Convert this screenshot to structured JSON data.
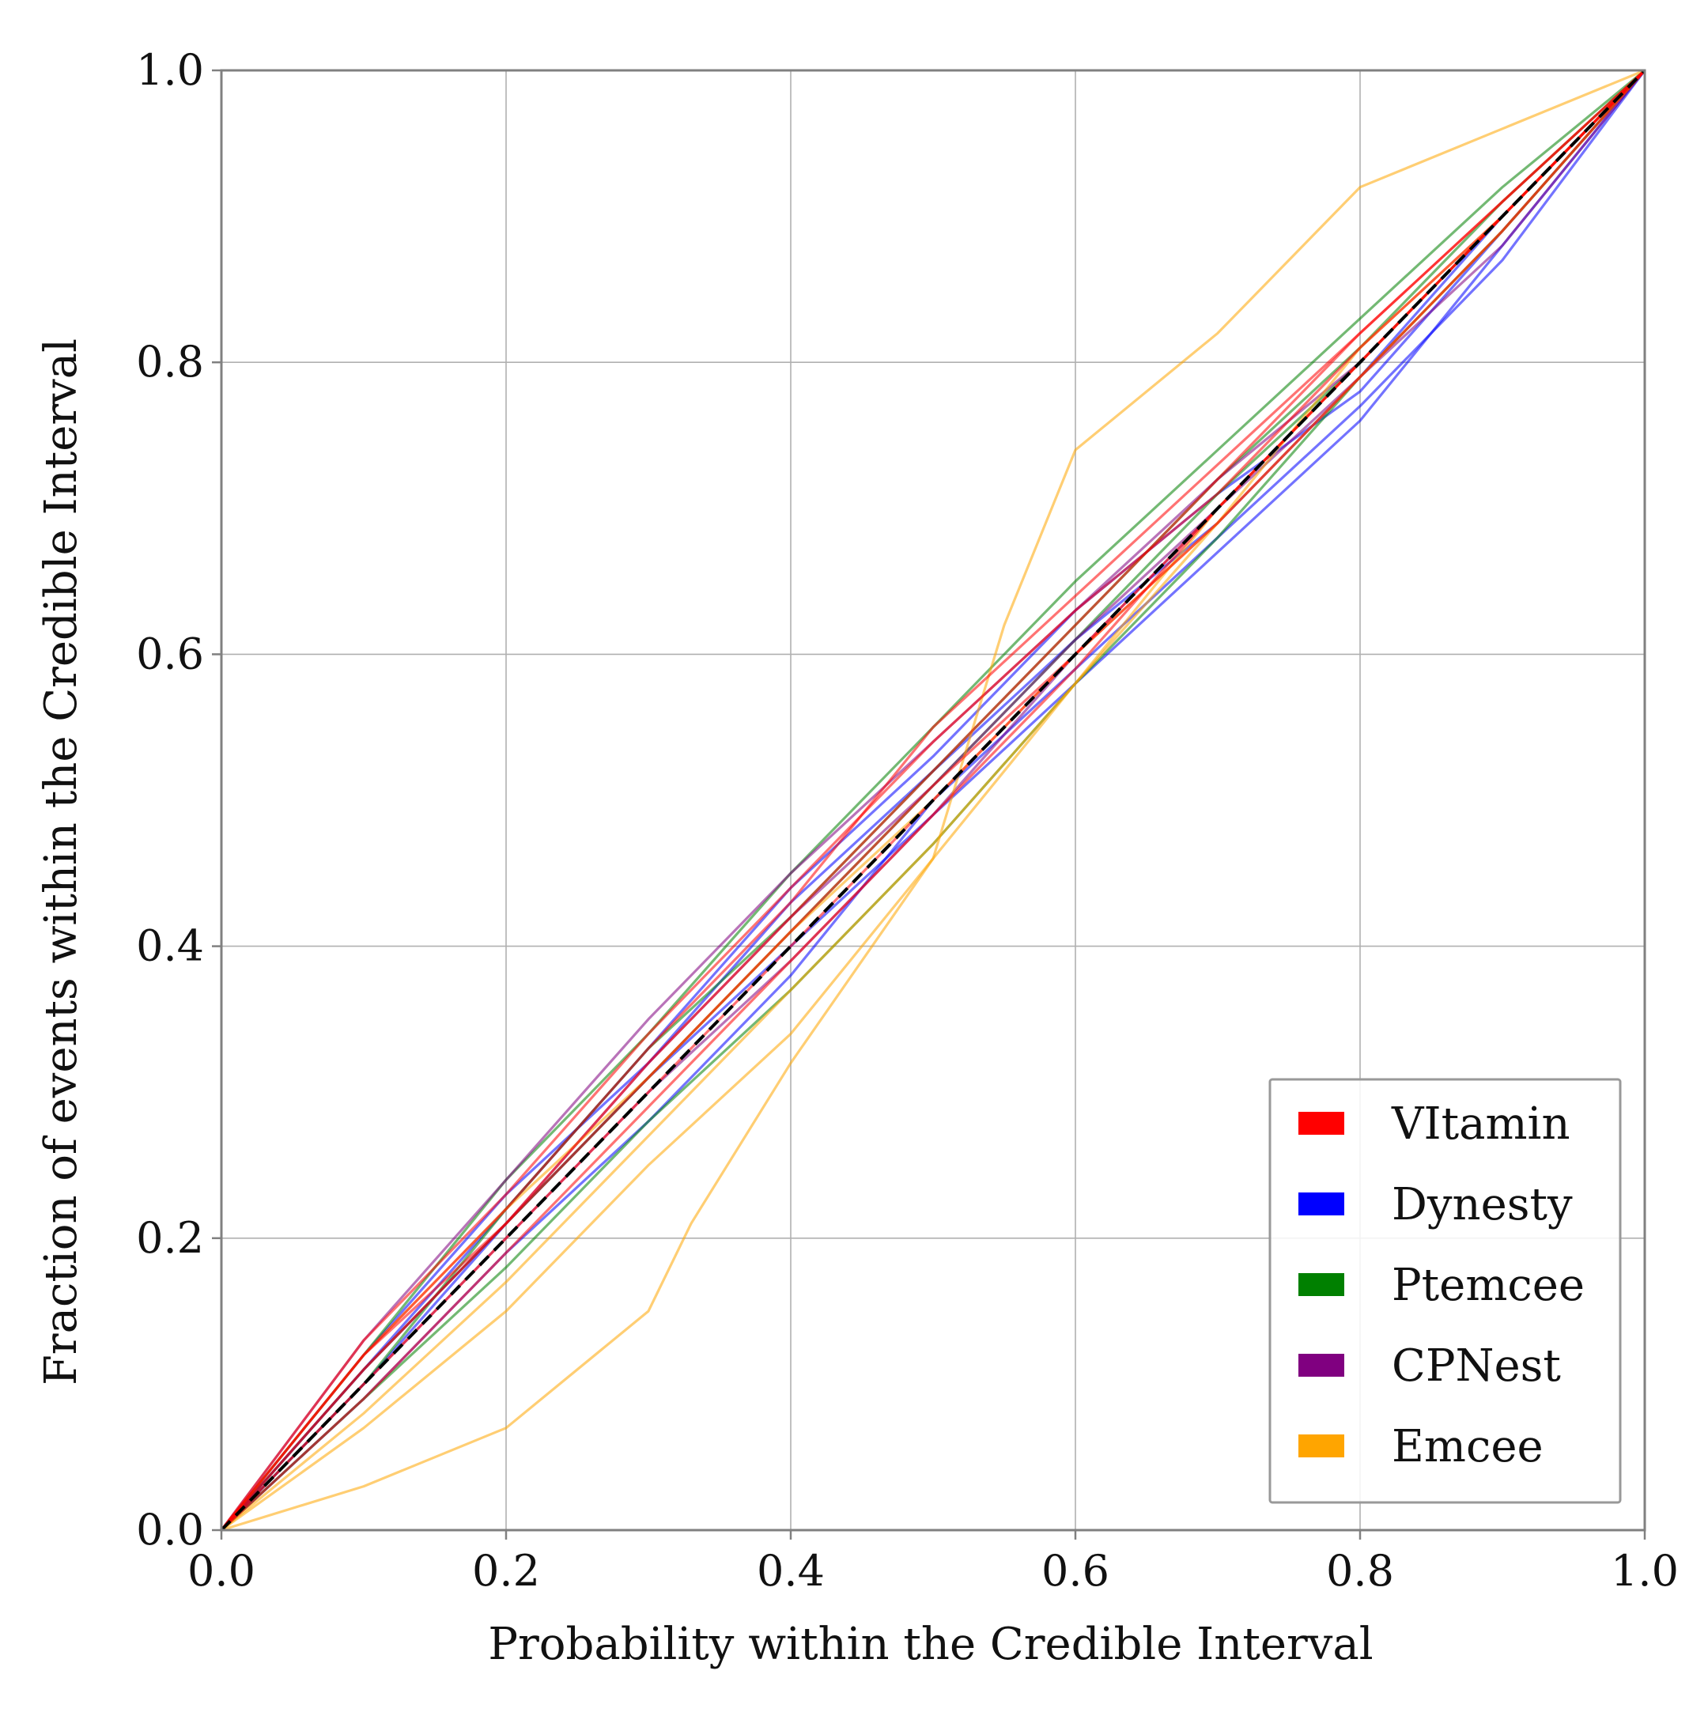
{
  "chart_data": {
    "type": "line",
    "title": "",
    "xlabel": "Probability within the Credible Interval",
    "ylabel": "Fraction of events within the Credible Interval",
    "xlim": [
      0.0,
      1.0
    ],
    "ylim": [
      0.0,
      1.0
    ],
    "xticks": [
      "0.0",
      "0.2",
      "0.4",
      "0.6",
      "0.8",
      "1.0"
    ],
    "yticks": [
      "0.0",
      "0.2",
      "0.4",
      "0.6",
      "0.8",
      "1.0"
    ],
    "grid": true,
    "legend_position": "lower-right",
    "reference_line": {
      "x": [
        0.0,
        1.0
      ],
      "y": [
        0.0,
        1.0
      ],
      "style": "dashed",
      "color": "#000000"
    },
    "legend": [
      {
        "name": "VItamin",
        "color": "#ff0000"
      },
      {
        "name": "Dynesty",
        "color": "#0000ff"
      },
      {
        "name": "Ptemcee",
        "color": "#008000"
      },
      {
        "name": "CPNest",
        "color": "#800080"
      },
      {
        "name": "Emcee",
        "color": "#ffa500"
      }
    ],
    "series": [
      {
        "name": "Dynesty",
        "color": "#0000ff",
        "x": [
          0,
          0.1,
          0.2,
          0.3,
          0.4,
          0.5,
          0.6,
          0.7,
          0.8,
          0.9,
          1
        ],
        "y": [
          0,
          0.11,
          0.22,
          0.33,
          0.44,
          0.53,
          0.63,
          0.71,
          0.78,
          0.89,
          1
        ]
      },
      {
        "name": "Dynesty",
        "color": "#0000ff",
        "x": [
          0,
          0.1,
          0.2,
          0.3,
          0.4,
          0.5,
          0.6,
          0.7,
          0.8,
          0.9,
          1
        ],
        "y": [
          0,
          0.09,
          0.19,
          0.28,
          0.38,
          0.5,
          0.59,
          0.68,
          0.77,
          0.87,
          1
        ]
      },
      {
        "name": "Dynesty",
        "color": "#0000ff",
        "x": [
          0,
          0.1,
          0.2,
          0.3,
          0.4,
          0.5,
          0.6,
          0.7,
          0.8,
          0.9,
          1
        ],
        "y": [
          0,
          0.12,
          0.23,
          0.32,
          0.43,
          0.52,
          0.61,
          0.69,
          0.79,
          0.9,
          1
        ]
      },
      {
        "name": "Dynesty",
        "color": "#0000ff",
        "x": [
          0,
          0.1,
          0.2,
          0.3,
          0.4,
          0.5,
          0.6,
          0.7,
          0.8,
          0.9,
          1
        ],
        "y": [
          0,
          0.1,
          0.21,
          0.31,
          0.4,
          0.49,
          0.58,
          0.67,
          0.76,
          0.88,
          1
        ]
      },
      {
        "name": "Ptemcee",
        "color": "#008000",
        "x": [
          0,
          0.1,
          0.2,
          0.3,
          0.4,
          0.5,
          0.6,
          0.7,
          0.8,
          0.9,
          1
        ],
        "y": [
          0,
          0.12,
          0.24,
          0.34,
          0.45,
          0.55,
          0.65,
          0.74,
          0.83,
          0.92,
          1
        ]
      },
      {
        "name": "Ptemcee",
        "color": "#008000",
        "x": [
          0,
          0.1,
          0.2,
          0.3,
          0.4,
          0.5,
          0.6,
          0.7,
          0.8,
          0.9,
          1
        ],
        "y": [
          0,
          0.09,
          0.18,
          0.28,
          0.37,
          0.47,
          0.58,
          0.68,
          0.79,
          0.89,
          1
        ]
      },
      {
        "name": "Ptemcee",
        "color": "#008000",
        "x": [
          0,
          0.1,
          0.2,
          0.3,
          0.4,
          0.5,
          0.6,
          0.7,
          0.8,
          0.9,
          1
        ],
        "y": [
          0,
          0.11,
          0.21,
          0.31,
          0.41,
          0.51,
          0.61,
          0.71,
          0.8,
          0.9,
          1
        ]
      },
      {
        "name": "Ptemcee",
        "color": "#008000",
        "x": [
          0,
          0.1,
          0.2,
          0.3,
          0.4,
          0.5,
          0.6,
          0.7,
          0.8,
          0.9,
          1
        ],
        "y": [
          0,
          0.1,
          0.22,
          0.33,
          0.42,
          0.52,
          0.62,
          0.72,
          0.81,
          0.91,
          1
        ]
      },
      {
        "name": "CPNest",
        "color": "#800080",
        "x": [
          0,
          0.1,
          0.2,
          0.3,
          0.4,
          0.5,
          0.6,
          0.7,
          0.8,
          0.9,
          1
        ],
        "y": [
          0,
          0.13,
          0.24,
          0.35,
          0.45,
          0.54,
          0.63,
          0.72,
          0.8,
          0.9,
          1
        ]
      },
      {
        "name": "CPNest",
        "color": "#800080",
        "x": [
          0,
          0.1,
          0.2,
          0.3,
          0.4,
          0.5,
          0.6,
          0.7,
          0.8,
          0.9,
          1
        ],
        "y": [
          0,
          0.1,
          0.2,
          0.3,
          0.39,
          0.49,
          0.6,
          0.7,
          0.79,
          0.88,
          1
        ]
      },
      {
        "name": "CPNest",
        "color": "#800080",
        "x": [
          0,
          0.1,
          0.2,
          0.3,
          0.4,
          0.5,
          0.6,
          0.7,
          0.8,
          0.9,
          1
        ],
        "y": [
          0,
          0.11,
          0.21,
          0.32,
          0.42,
          0.51,
          0.61,
          0.7,
          0.8,
          0.9,
          1
        ]
      },
      {
        "name": "Emcee",
        "color": "#ffa500",
        "x": [
          0,
          0.1,
          0.2,
          0.3,
          0.33,
          0.4,
          0.5,
          0.55,
          0.6,
          0.7,
          0.8,
          0.9,
          1
        ],
        "y": [
          0,
          0.03,
          0.07,
          0.15,
          0.21,
          0.32,
          0.46,
          0.62,
          0.74,
          0.82,
          0.92,
          0.96,
          1
        ]
      },
      {
        "name": "Emcee",
        "color": "#ffa500",
        "x": [
          0,
          0.1,
          0.2,
          0.3,
          0.4,
          0.5,
          0.6,
          0.7,
          0.8,
          0.9,
          1
        ],
        "y": [
          0,
          0.07,
          0.15,
          0.25,
          0.34,
          0.46,
          0.58,
          0.7,
          0.8,
          0.9,
          1
        ]
      },
      {
        "name": "Emcee",
        "color": "#ffa500",
        "x": [
          0,
          0.1,
          0.2,
          0.3,
          0.4,
          0.5,
          0.6,
          0.7,
          0.8,
          0.9,
          1
        ],
        "y": [
          0,
          0.12,
          0.22,
          0.31,
          0.41,
          0.5,
          0.6,
          0.69,
          0.79,
          0.89,
          1
        ]
      },
      {
        "name": "Emcee",
        "color": "#ffa500",
        "x": [
          0,
          0.1,
          0.2,
          0.3,
          0.4,
          0.5,
          0.6,
          0.7,
          0.8,
          0.9,
          1
        ],
        "y": [
          0,
          0.08,
          0.17,
          0.27,
          0.37,
          0.47,
          0.58,
          0.69,
          0.81,
          0.9,
          1
        ]
      },
      {
        "name": "VItamin",
        "color": "#ff0000",
        "x": [
          0,
          0.1,
          0.2,
          0.3,
          0.4,
          0.5,
          0.6,
          0.7,
          0.8,
          0.9,
          1
        ],
        "y": [
          0,
          0.12,
          0.22,
          0.33,
          0.43,
          0.55,
          0.64,
          0.73,
          0.82,
          0.91,
          1
        ]
      },
      {
        "name": "VItamin",
        "color": "#ff0000",
        "x": [
          0,
          0.1,
          0.2,
          0.3,
          0.4,
          0.5,
          0.6,
          0.7,
          0.8,
          0.9,
          1
        ],
        "y": [
          0,
          0.1,
          0.2,
          0.3,
          0.4,
          0.5,
          0.6,
          0.7,
          0.8,
          0.9,
          1
        ]
      },
      {
        "name": "VItamin",
        "color": "#ff0000",
        "x": [
          0,
          0.1,
          0.2,
          0.3,
          0.4,
          0.5,
          0.6,
          0.7,
          0.8,
          0.9,
          1
        ],
        "y": [
          0,
          0.11,
          0.21,
          0.31,
          0.41,
          0.51,
          0.6,
          0.69,
          0.79,
          0.89,
          1
        ]
      },
      {
        "name": "VItamin",
        "color": "#ff0000",
        "x": [
          0,
          0.1,
          0.2,
          0.3,
          0.4,
          0.5,
          0.6,
          0.7,
          0.8,
          0.9,
          1
        ],
        "y": [
          0,
          0.13,
          0.23,
          0.34,
          0.44,
          0.54,
          0.63,
          0.71,
          0.81,
          0.9,
          1
        ]
      },
      {
        "name": "VItamin",
        "color": "#ff0000",
        "x": [
          0,
          0.1,
          0.2,
          0.3,
          0.4,
          0.5,
          0.6,
          0.7,
          0.8,
          0.9,
          1
        ],
        "y": [
          0,
          0.09,
          0.19,
          0.29,
          0.39,
          0.49,
          0.59,
          0.7,
          0.8,
          0.9,
          1
        ]
      },
      {
        "name": "VItamin",
        "color": "#ff0000",
        "x": [
          0,
          0.1,
          0.2,
          0.3,
          0.4,
          0.5,
          0.6,
          0.7,
          0.8,
          0.9,
          1
        ],
        "y": [
          0,
          0.12,
          0.21,
          0.32,
          0.42,
          0.52,
          0.62,
          0.72,
          0.82,
          0.91,
          1
        ]
      }
    ]
  }
}
